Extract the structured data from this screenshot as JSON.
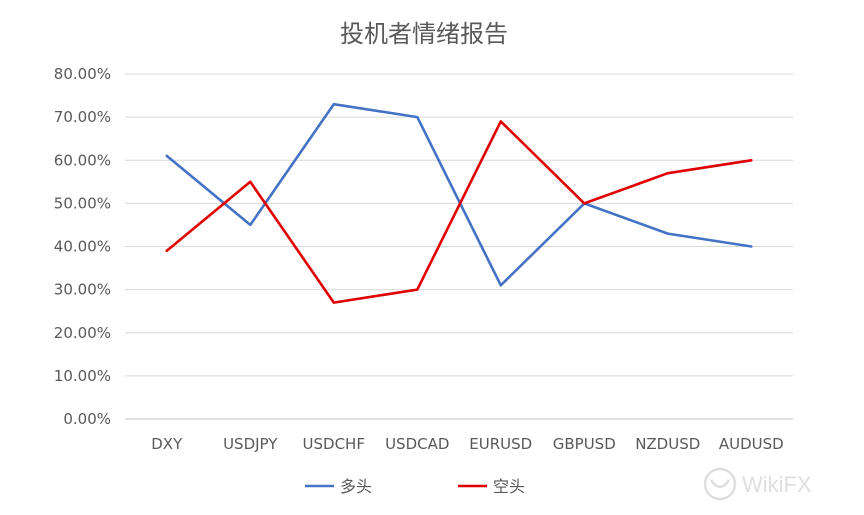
{
  "chart_data": {
    "type": "line",
    "title": "投机者情绪报告",
    "xlabel": "",
    "ylabel": "",
    "categories": [
      "DXY",
      "USDJPY",
      "USDCHF",
      "USDCAD",
      "EURUSD",
      "GBPUSD",
      "NZDUSD",
      "AUDUSD"
    ],
    "series": [
      {
        "name": "多头",
        "color": "#4472C4",
        "values": [
          61.0,
          45.0,
          73.0,
          70.0,
          31.0,
          50.0,
          43.0,
          40.0
        ]
      },
      {
        "name": "空头",
        "color": "#E00000",
        "values": [
          39.0,
          55.0,
          27.0,
          30.0,
          69.0,
          50.0,
          57.0,
          60.0
        ]
      }
    ],
    "ylim": [
      0,
      80
    ],
    "yticks": [
      "0.00%",
      "10.00%",
      "20.00%",
      "30.00%",
      "40.00%",
      "50.00%",
      "60.00%",
      "70.00%",
      "80.00%"
    ],
    "grid": true,
    "legend": "bottom"
  },
  "watermark": "WikiFX"
}
